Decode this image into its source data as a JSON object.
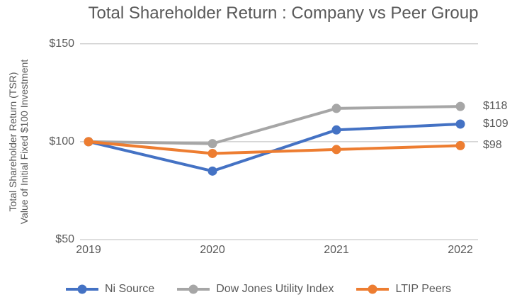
{
  "title": "Total Shareholder Return : Company vs Peer Group",
  "chart_data": {
    "type": "line",
    "title": "Total Shareholder Return : Company vs Peer Group",
    "x_categories": [
      "2019",
      "2020",
      "2021",
      "2022"
    ],
    "series": [
      {
        "name": "Ni Source",
        "color": "#4472C4",
        "values": [
          100,
          85,
          106,
          109
        ],
        "end_label": "$109"
      },
      {
        "name": "Dow Jones Utility Index",
        "color": "#A6A6A6",
        "values": [
          100,
          99,
          117,
          118
        ],
        "end_label": "$118"
      },
      {
        "name": "LTIP Peers",
        "color": "#ED7D31",
        "values": [
          100,
          94,
          96,
          98
        ],
        "end_label": "$98"
      }
    ],
    "ylabel_line1": "Total Shareholder Return (TSR)",
    "ylabel_line2": "Value of Initial Fixed $100 Investment",
    "yticks": [
      {
        "label": "$150",
        "value": 150
      },
      {
        "label": "$100",
        "value": 100
      },
      {
        "label": "$50",
        "value": 50
      }
    ],
    "ylim": [
      50,
      150
    ],
    "grid": "horizontal-only",
    "gridline_color": "#C9C9C9",
    "text_color": "#595959",
    "legend_position": "bottom"
  }
}
